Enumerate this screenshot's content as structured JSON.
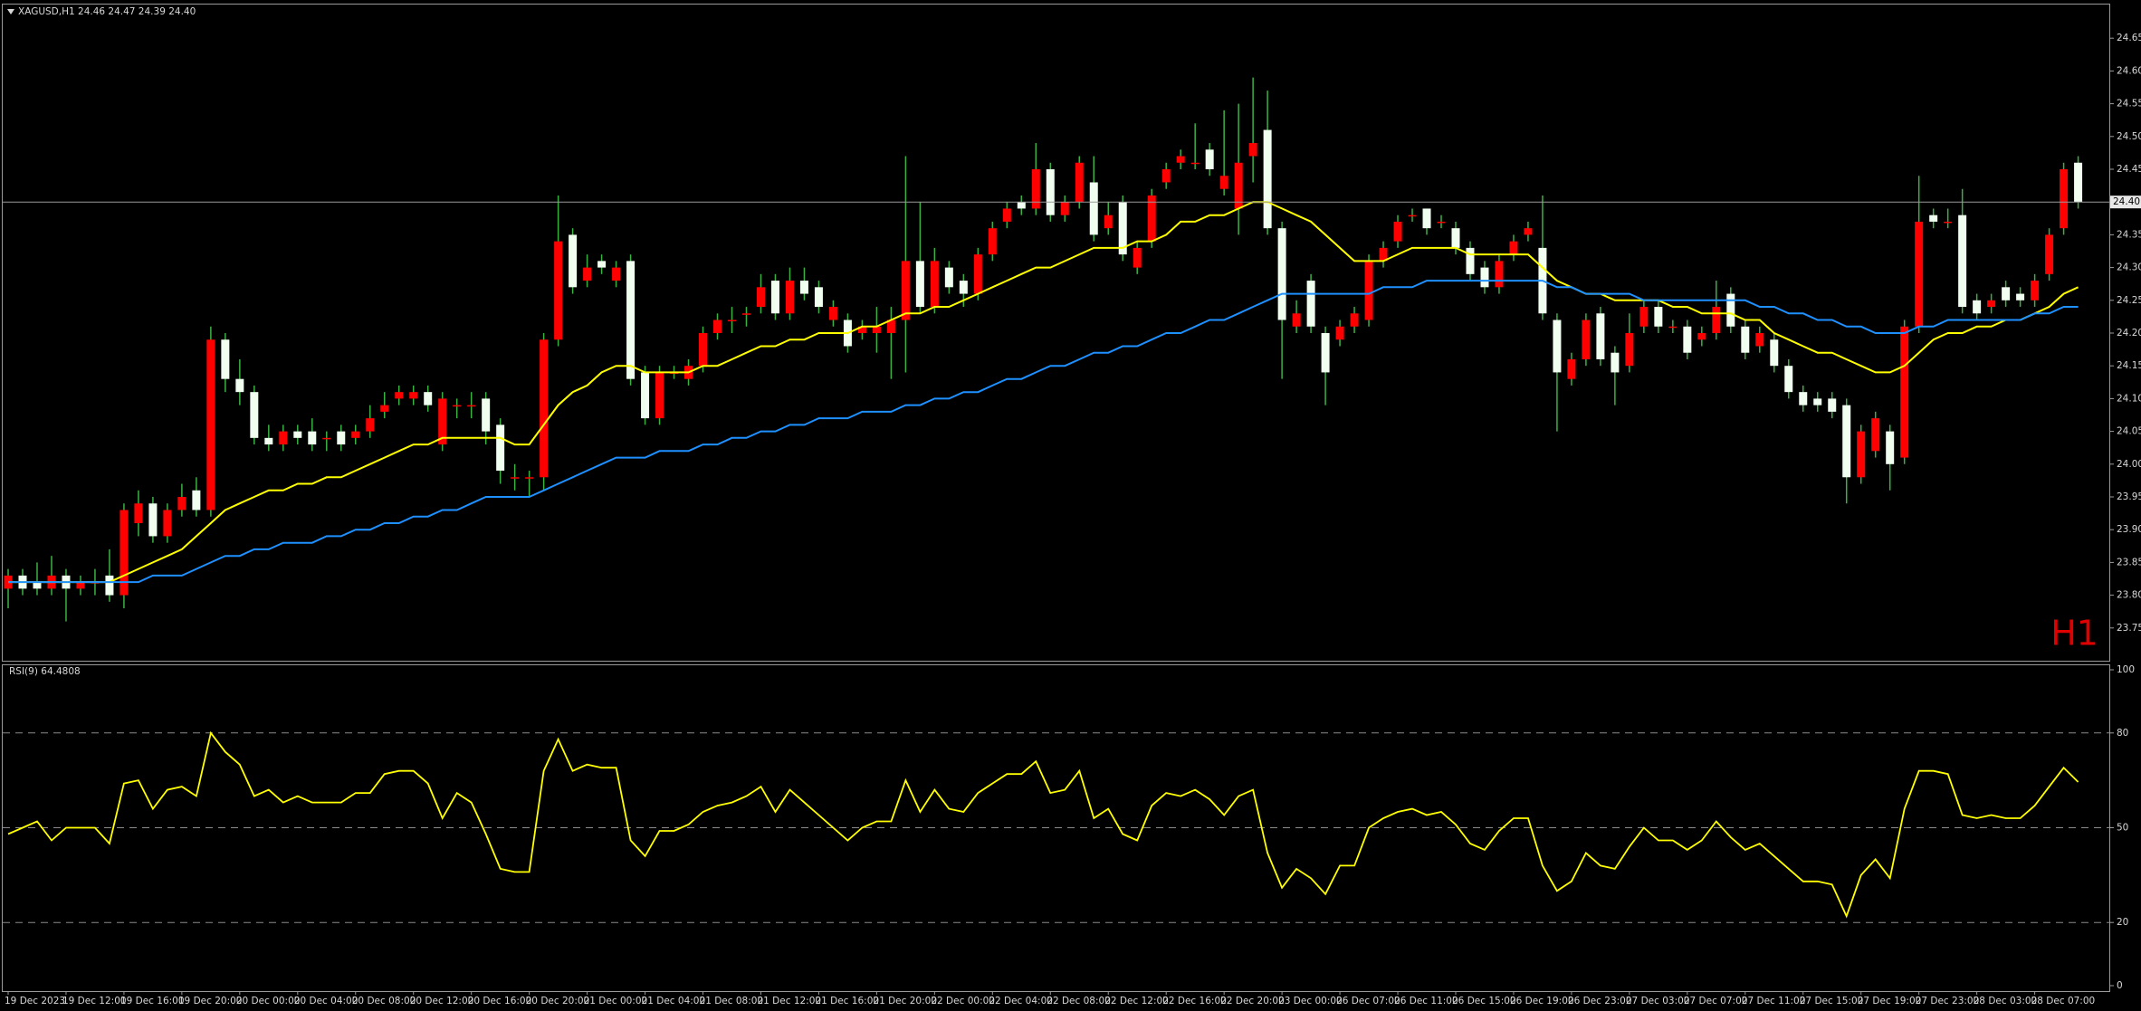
{
  "chart_data": [
    {
      "type": "candlestick",
      "title": "XAGUSD,H1  24.46 24.47 24.39 24.40",
      "annotation": "H1",
      "categories": [
        "19 Dec 2023",
        null,
        null,
        null,
        "19 Dec 12:00",
        null,
        null,
        null,
        "19 Dec 16:00",
        null,
        null,
        null,
        "19 Dec 20:00",
        null,
        null,
        null,
        "20 Dec 00:00",
        null,
        null,
        null,
        "20 Dec 04:00",
        null,
        null,
        null,
        "20 Dec 08:00",
        null,
        null,
        null,
        "20 Dec 12:00",
        null,
        null,
        null,
        "20 Dec 16:00",
        null,
        null,
        null,
        "20 Dec 20:00",
        null,
        null,
        null,
        "21 Dec 00:00",
        null,
        null,
        null,
        "21 Dec 04:00",
        null,
        null,
        null,
        "21 Dec 08:00",
        null,
        null,
        null,
        "21 Dec 12:00",
        null,
        null,
        null,
        "21 Dec 16:00",
        null,
        null,
        null,
        "21 Dec 20:00",
        null,
        null,
        null,
        "22 Dec 00:00",
        null,
        null,
        null,
        "22 Dec 04:00",
        null,
        null,
        null,
        "22 Dec 08:00",
        null,
        null,
        null,
        "22 Dec 12:00",
        null,
        null,
        null,
        "22 Dec 16:00",
        null,
        null,
        null,
        "22 Dec 20:00",
        null,
        null,
        null,
        "23 Dec 00:00",
        null,
        null,
        null,
        "26 Dec 07:00",
        null,
        null,
        null,
        "26 Dec 11:00",
        null,
        null,
        null,
        "26 Dec 15:00",
        null,
        null,
        null,
        "26 Dec 19:00",
        null,
        null,
        null,
        "26 Dec 23:00",
        null,
        null,
        null,
        "27 Dec 03:00",
        null,
        null,
        null,
        "27 Dec 07:00",
        null,
        null,
        null,
        "27 Dec 11:00",
        null,
        null,
        null,
        "27 Dec 15:00",
        null,
        null,
        null,
        "27 Dec 19:00",
        null,
        null,
        null,
        "27 Dec 23:00",
        null,
        null,
        null,
        "28 Dec 03:00",
        null,
        null,
        null,
        "28 Dec 07:00",
        null,
        null,
        null
      ],
      "open": [
        23.81,
        23.83,
        23.82,
        23.81,
        23.83,
        23.81,
        23.82,
        23.83,
        23.8,
        23.91,
        23.94,
        23.89,
        23.93,
        23.96,
        23.93,
        24.19,
        24.13,
        24.11,
        24.04,
        24.03,
        24.05,
        24.05,
        24.04,
        24.05,
        24.04,
        24.05,
        24.08,
        24.1,
        24.1,
        24.11,
        24.03,
        24.09,
        24.09,
        24.1,
        24.06,
        23.98,
        23.98,
        23.98,
        24.19,
        24.35,
        24.28,
        24.31,
        24.28,
        24.31,
        24.14,
        24.07,
        24.14,
        24.13,
        24.15,
        24.2,
        24.22,
        24.23,
        24.24,
        24.28,
        24.23,
        24.28,
        24.27,
        24.22,
        24.22,
        24.2,
        24.2,
        24.2,
        24.22,
        24.31,
        24.24,
        24.3,
        24.28,
        24.26,
        24.32,
        24.37,
        24.4,
        24.39,
        24.45,
        24.38,
        24.4,
        24.43,
        24.36,
        24.4,
        24.3,
        24.34,
        24.43,
        24.46,
        24.46,
        24.48,
        24.42,
        24.39,
        24.47,
        24.51,
        24.36,
        24.21,
        24.28,
        24.2,
        24.19,
        24.21,
        24.22,
        24.31,
        24.34,
        24.38,
        24.39,
        24.37,
        24.36,
        24.33,
        24.3,
        24.27,
        24.32,
        24.35,
        24.33,
        24.22,
        24.13,
        24.16,
        24.23,
        24.17,
        24.15,
        24.21,
        24.24,
        24.21,
        24.21,
        24.19,
        24.2,
        24.26,
        24.21,
        24.18,
        24.19,
        24.15,
        24.11,
        24.1,
        24.1,
        24.09,
        23.98,
        24.02,
        24.05,
        24.01,
        24.21,
        24.38,
        24.37,
        24.38,
        24.25,
        24.24,
        24.27,
        24.26,
        24.25,
        24.29,
        24.36,
        24.46
      ],
      "high": [
        23.84,
        23.84,
        23.85,
        23.86,
        23.84,
        23.83,
        23.84,
        23.87,
        23.94,
        23.96,
        23.95,
        23.94,
        23.97,
        23.98,
        24.21,
        24.2,
        24.16,
        24.12,
        24.06,
        24.06,
        24.06,
        24.07,
        24.05,
        24.06,
        24.06,
        24.09,
        24.11,
        24.12,
        24.12,
        24.12,
        24.11,
        24.1,
        24.11,
        24.11,
        24.07,
        24.0,
        23.99,
        24.2,
        24.41,
        24.36,
        24.32,
        24.32,
        24.31,
        24.32,
        24.15,
        24.15,
        24.15,
        24.16,
        24.21,
        24.23,
        24.24,
        24.24,
        24.29,
        24.29,
        24.3,
        24.3,
        24.28,
        24.25,
        24.23,
        24.22,
        24.24,
        24.24,
        24.47,
        24.4,
        24.33,
        24.31,
        24.29,
        24.33,
        24.37,
        24.4,
        24.41,
        24.49,
        24.46,
        24.41,
        24.47,
        24.47,
        24.4,
        24.41,
        24.34,
        24.42,
        24.46,
        24.48,
        24.52,
        24.49,
        24.54,
        24.55,
        24.59,
        24.57,
        24.37,
        24.25,
        24.29,
        24.21,
        24.22,
        24.24,
        24.32,
        24.34,
        24.38,
        24.39,
        24.39,
        24.38,
        24.37,
        24.34,
        24.31,
        24.32,
        24.35,
        24.37,
        24.41,
        24.23,
        24.17,
        24.23,
        24.24,
        24.18,
        24.23,
        24.25,
        24.25,
        24.22,
        24.22,
        24.21,
        24.28,
        24.27,
        24.22,
        24.21,
        24.2,
        24.16,
        24.12,
        24.11,
        24.11,
        24.1,
        24.06,
        24.08,
        24.06,
        24.22,
        24.44,
        24.39,
        24.39,
        24.42,
        24.26,
        24.26,
        24.28,
        24.27,
        24.29,
        24.36,
        24.46,
        24.47
      ],
      "low": [
        23.78,
        23.8,
        23.8,
        23.8,
        23.76,
        23.8,
        23.8,
        23.79,
        23.78,
        23.89,
        23.88,
        23.88,
        23.92,
        23.92,
        23.92,
        24.11,
        24.09,
        24.03,
        24.02,
        24.02,
        24.03,
        24.02,
        24.02,
        24.02,
        24.03,
        24.04,
        24.07,
        24.09,
        24.09,
        24.08,
        24.02,
        24.07,
        24.07,
        24.03,
        23.97,
        23.96,
        23.95,
        23.96,
        24.18,
        24.26,
        24.27,
        24.29,
        24.27,
        24.12,
        24.06,
        24.06,
        24.13,
        24.12,
        24.14,
        24.19,
        24.2,
        24.21,
        24.23,
        24.22,
        24.22,
        24.25,
        24.23,
        24.21,
        24.17,
        24.19,
        24.17,
        24.13,
        24.14,
        24.23,
        24.23,
        24.26,
        24.24,
        24.25,
        24.31,
        24.36,
        24.38,
        24.38,
        24.37,
        24.37,
        24.39,
        24.34,
        24.35,
        24.31,
        24.29,
        24.33,
        24.42,
        24.45,
        24.45,
        24.44,
        24.41,
        24.35,
        24.43,
        24.35,
        24.13,
        24.2,
        24.2,
        24.09,
        24.18,
        24.2,
        24.21,
        24.3,
        24.33,
        24.37,
        24.35,
        24.36,
        24.32,
        24.28,
        24.26,
        24.26,
        24.31,
        24.34,
        24.22,
        24.05,
        24.12,
        24.15,
        24.15,
        24.09,
        24.14,
        24.2,
        24.2,
        24.2,
        24.16,
        24.18,
        24.19,
        24.2,
        24.16,
        24.17,
        24.14,
        24.1,
        24.08,
        24.08,
        24.07,
        23.94,
        23.97,
        24.01,
        23.96,
        24.0,
        24.2,
        24.36,
        24.36,
        24.23,
        24.22,
        24.23,
        24.24,
        24.24,
        24.24,
        24.28,
        24.35,
        24.39
      ],
      "close": [
        23.83,
        23.81,
        23.81,
        23.83,
        23.81,
        23.82,
        23.82,
        23.8,
        23.93,
        23.94,
        23.89,
        23.93,
        23.95,
        23.93,
        24.19,
        24.13,
        24.11,
        24.04,
        24.03,
        24.05,
        24.04,
        24.03,
        24.04,
        24.03,
        24.05,
        24.07,
        24.09,
        24.11,
        24.11,
        24.09,
        24.1,
        24.09,
        24.09,
        24.05,
        23.99,
        23.98,
        23.98,
        24.19,
        24.34,
        24.27,
        24.3,
        24.3,
        24.3,
        24.13,
        24.07,
        24.14,
        24.14,
        24.15,
        24.2,
        24.22,
        24.22,
        24.23,
        24.27,
        24.23,
        24.28,
        24.26,
        24.24,
        24.24,
        24.18,
        24.21,
        24.21,
        24.22,
        24.31,
        24.24,
        24.31,
        24.27,
        24.26,
        24.32,
        24.36,
        24.39,
        24.39,
        24.45,
        24.38,
        24.4,
        24.46,
        24.35,
        24.38,
        24.32,
        24.33,
        24.41,
        24.45,
        24.47,
        24.46,
        24.45,
        24.44,
        24.46,
        24.49,
        24.36,
        24.22,
        24.23,
        24.21,
        24.14,
        24.21,
        24.23,
        24.31,
        24.33,
        24.37,
        24.38,
        24.36,
        24.37,
        24.33,
        24.29,
        24.27,
        24.31,
        24.34,
        24.36,
        24.23,
        24.14,
        24.16,
        24.22,
        24.16,
        24.14,
        24.2,
        24.24,
        24.21,
        24.21,
        24.17,
        24.2,
        24.24,
        24.21,
        24.17,
        24.2,
        24.15,
        24.11,
        24.09,
        24.09,
        24.08,
        23.98,
        24.05,
        24.07,
        24.0,
        24.21,
        24.37,
        24.37,
        24.37,
        24.24,
        24.23,
        24.25,
        24.25,
        24.25,
        24.28,
        24.35,
        24.45,
        24.4
      ],
      "colors": {
        "up": "#ff0000",
        "down": "#f0fff0",
        "wick": "#3cb043"
      },
      "series": [
        {
          "color": "#ffff00",
          "values": [
            23.82,
            23.82,
            23.82,
            23.82,
            23.82,
            23.82,
            23.82,
            23.82,
            23.83,
            23.84,
            23.85,
            23.86,
            23.87,
            23.89,
            23.91,
            23.93,
            23.94,
            23.95,
            23.96,
            23.96,
            23.97,
            23.97,
            23.98,
            23.98,
            23.99,
            24.0,
            24.01,
            24.02,
            24.03,
            24.03,
            24.04,
            24.04,
            24.04,
            24.04,
            24.04,
            24.03,
            24.03,
            24.06,
            24.09,
            24.11,
            24.12,
            24.14,
            24.15,
            24.15,
            24.14,
            24.14,
            24.14,
            24.14,
            24.15,
            24.15,
            24.16,
            24.17,
            24.18,
            24.18,
            24.19,
            24.19,
            24.2,
            24.2,
            24.2,
            24.21,
            24.21,
            24.22,
            24.23,
            24.23,
            24.24,
            24.24,
            24.25,
            24.26,
            24.27,
            24.28,
            24.29,
            24.3,
            24.3,
            24.31,
            24.32,
            24.33,
            24.33,
            24.33,
            24.34,
            24.34,
            24.35,
            24.37,
            24.37,
            24.38,
            24.38,
            24.39,
            24.4,
            24.4,
            24.39,
            24.38,
            24.37,
            24.35,
            24.33,
            24.31,
            24.31,
            24.31,
            24.32,
            24.33,
            24.33,
            24.33,
            24.33,
            24.32,
            24.32,
            24.32,
            24.32,
            24.32,
            24.3,
            24.28,
            24.27,
            24.26,
            24.26,
            24.25,
            24.25,
            24.25,
            24.25,
            24.24,
            24.24,
            24.23,
            24.23,
            24.23,
            24.22,
            24.22,
            24.2,
            24.19,
            24.18,
            24.17,
            24.17,
            24.16,
            24.15,
            24.14,
            24.14,
            24.15,
            24.17,
            24.19,
            24.2,
            24.2,
            24.21,
            24.21,
            24.22,
            24.22,
            24.23,
            24.24,
            24.26,
            24.27
          ]
        },
        {
          "color": "#1e90ff",
          "values": [
            23.82,
            23.82,
            23.82,
            23.82,
            23.82,
            23.82,
            23.82,
            23.82,
            23.82,
            23.82,
            23.83,
            23.83,
            23.83,
            23.84,
            23.85,
            23.86,
            23.86,
            23.87,
            23.87,
            23.88,
            23.88,
            23.88,
            23.89,
            23.89,
            23.9,
            23.9,
            23.91,
            23.91,
            23.92,
            23.92,
            23.93,
            23.93,
            23.94,
            23.95,
            23.95,
            23.95,
            23.95,
            23.96,
            23.97,
            23.98,
            23.99,
            24.0,
            24.01,
            24.01,
            24.01,
            24.02,
            24.02,
            24.02,
            24.03,
            24.03,
            24.04,
            24.04,
            24.05,
            24.05,
            24.06,
            24.06,
            24.07,
            24.07,
            24.07,
            24.08,
            24.08,
            24.08,
            24.09,
            24.09,
            24.1,
            24.1,
            24.11,
            24.11,
            24.12,
            24.13,
            24.13,
            24.14,
            24.15,
            24.15,
            24.16,
            24.17,
            24.17,
            24.18,
            24.18,
            24.19,
            24.2,
            24.2,
            24.21,
            24.22,
            24.22,
            24.23,
            24.24,
            24.25,
            24.26,
            24.26,
            24.26,
            24.26,
            24.26,
            24.26,
            24.26,
            24.27,
            24.27,
            24.27,
            24.28,
            24.28,
            24.28,
            24.28,
            24.28,
            24.28,
            24.28,
            24.28,
            24.28,
            24.27,
            24.27,
            24.26,
            24.26,
            24.26,
            24.26,
            24.25,
            24.25,
            24.25,
            24.25,
            24.25,
            24.25,
            24.25,
            24.25,
            24.24,
            24.24,
            24.23,
            24.23,
            24.22,
            24.22,
            24.21,
            24.21,
            24.2,
            24.2,
            24.2,
            24.21,
            24.21,
            24.22,
            24.22,
            24.22,
            24.22,
            24.22,
            24.22,
            24.23,
            24.23,
            24.24,
            24.24
          ]
        }
      ],
      "ylim": [
        23.7,
        24.7
      ],
      "yticks": [
        23.75,
        {
          "value": 23.8,
          "label": "23.80"
        },
        23.85,
        {
          "value": 23.9,
          "label": "23.90"
        },
        23.95,
        {
          "value": 24.0,
          "label": "24.00"
        },
        24.05,
        {
          "value": 24.1,
          "label": "24.10"
        },
        24.15,
        {
          "value": 24.2,
          "label": "24.20"
        },
        24.25,
        {
          "value": 24.3,
          "label": "24.30"
        },
        24.35,
        {
          "value": 24.4,
          "label": "24.40"
        },
        24.45,
        {
          "value": 24.5,
          "label": "24.50"
        },
        24.55,
        {
          "value": 24.6,
          "label": "24.60"
        },
        24.65
      ],
      "price_line": {
        "value": 24.4,
        "label": "24.40"
      }
    },
    {
      "type": "line",
      "title": "RSI(9) 64.4808",
      "color": "#ffff00",
      "values": [
        48,
        50,
        52,
        46,
        50,
        50,
        50,
        45,
        64,
        65,
        56,
        62,
        63,
        60,
        80,
        74,
        70,
        60,
        62,
        58,
        60,
        58,
        58,
        58,
        61,
        61,
        67,
        68,
        68,
        64,
        53,
        61,
        58,
        48,
        37,
        36,
        36,
        68,
        78,
        68,
        70,
        69,
        69,
        46,
        41,
        49,
        49,
        51,
        55,
        57,
        58,
        60,
        63,
        55,
        62,
        58,
        54,
        50,
        46,
        50,
        52,
        52,
        65,
        55,
        62,
        56,
        55,
        61,
        64,
        67,
        67,
        71,
        61,
        62,
        68,
        53,
        56,
        48,
        46,
        57,
        61,
        60,
        62,
        59,
        54,
        60,
        62,
        42,
        31,
        37,
        34,
        29,
        38,
        38,
        50,
        53,
        55,
        56,
        54,
        55,
        51,
        45,
        43,
        49,
        53,
        53,
        38,
        30,
        33,
        42,
        38,
        37,
        44,
        50,
        46,
        46,
        43,
        46,
        52,
        47,
        43,
        45,
        41,
        37,
        33,
        33,
        32,
        22,
        35,
        40,
        34,
        56,
        68,
        68,
        67,
        54,
        53,
        54,
        53,
        53,
        57,
        63,
        69,
        64.48
      ],
      "ylim": [
        0,
        100
      ],
      "yticks": [
        0,
        20,
        50,
        80,
        100
      ],
      "levels": [
        20,
        50,
        80
      ]
    }
  ]
}
